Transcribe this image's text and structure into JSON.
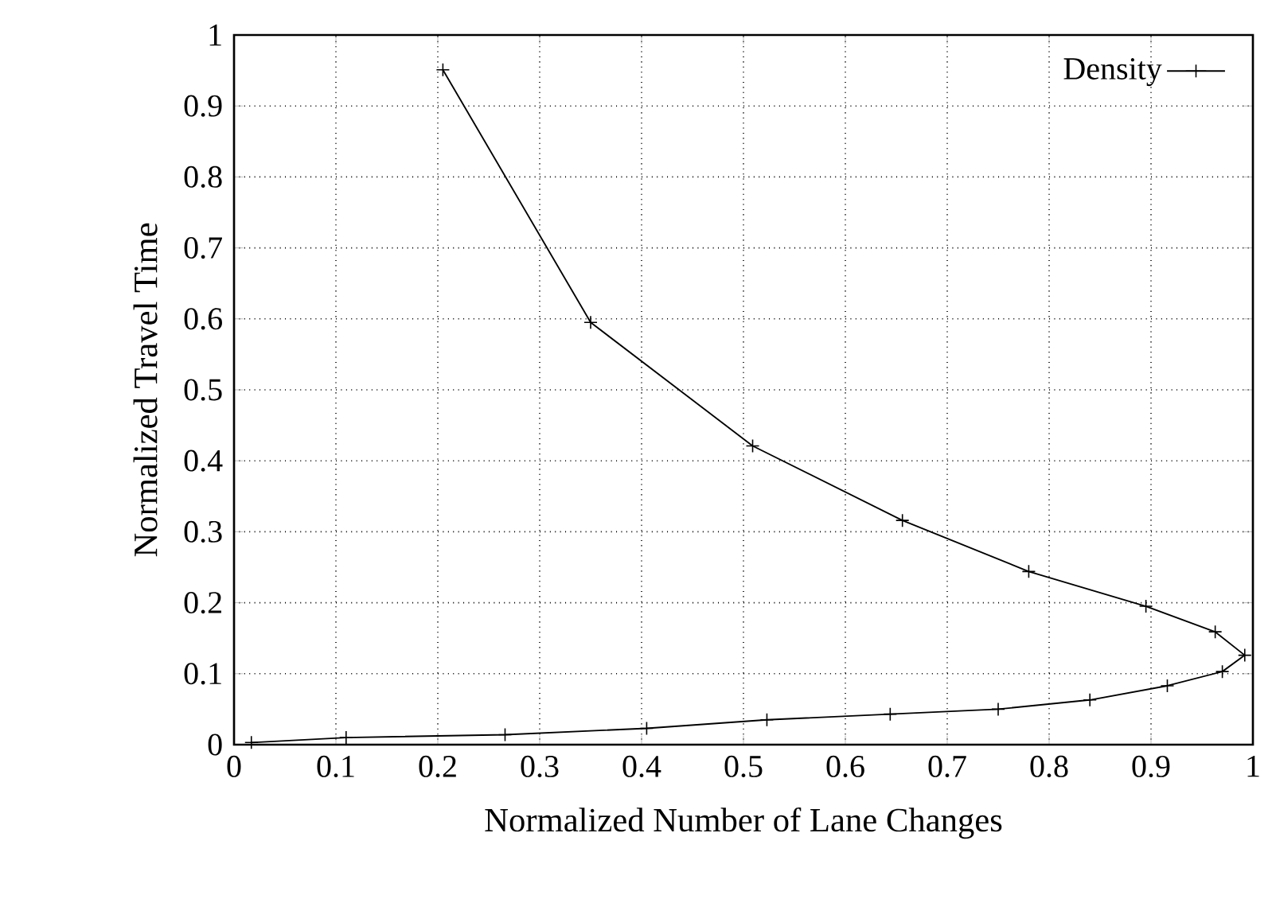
{
  "chart_data": {
    "type": "line",
    "xlabel": "Normalized Number of Lane Changes",
    "ylabel": "Normalized Travel Time",
    "series": [
      {
        "name": "Density",
        "color": "#000000",
        "x": [
          0.017,
          0.11,
          0.266,
          0.405,
          0.523,
          0.644,
          0.75,
          0.84,
          0.916,
          0.97,
          0.992,
          0.963,
          0.895,
          0.78,
          0.656,
          0.509,
          0.35,
          0.205
        ],
        "values": [
          0.003,
          0.01,
          0.014,
          0.023,
          0.035,
          0.043,
          0.05,
          0.063,
          0.083,
          0.103,
          0.126,
          0.159,
          0.195,
          0.244,
          0.316,
          0.421,
          0.595,
          0.951
        ]
      }
    ],
    "xlim": [
      0,
      1
    ],
    "ylim": [
      0,
      1
    ],
    "xticks": [
      0,
      0.1,
      0.2,
      0.3,
      0.4,
      0.5,
      0.6,
      0.7,
      0.8,
      0.9,
      1
    ],
    "yticks": [
      0,
      0.1,
      0.2,
      0.3,
      0.4,
      0.5,
      0.6,
      0.7,
      0.8,
      0.9,
      1
    ],
    "grid": true,
    "legend": "top right",
    "marker": "cross",
    "line_style": "solid"
  }
}
